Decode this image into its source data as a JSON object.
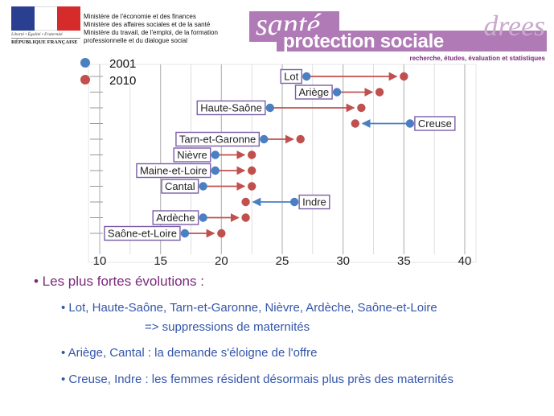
{
  "header": {
    "gov_motto": "Liberté • Égalité • Fraternité",
    "gov_republic": "RÉPUBLIQUE FRANÇAISE",
    "ministries": [
      "Ministère de l'économie et des finances",
      "Ministère des affaires sociales et de la santé",
      "Ministère du travail, de l'emploi, de la formation",
      "professionnelle et du dialogue social"
    ],
    "brand_sante": "santé",
    "brand_protection": "protection sociale",
    "brand_drees": "drees",
    "brand_tagline": "recherche, études, évaluation et statistiques",
    "colors": {
      "brand_purple": "#b07ab6",
      "title_purple": "#7b2a7b",
      "bullet_blue": "#3355aa"
    }
  },
  "chart_data": {
    "type": "scatter",
    "subtype": "dumbbell",
    "title": "",
    "xlabel": "",
    "ylabel": "",
    "xlim": [
      10,
      40
    ],
    "xticks": [
      10,
      15,
      20,
      25,
      30,
      35,
      40
    ],
    "grid": "vertical",
    "legend_position": "top-left",
    "series": [
      {
        "name": "2001",
        "color": "#4a7fc1"
      },
      {
        "name": "2010",
        "color": "#c0504d"
      }
    ],
    "rows": [
      {
        "label": "Lot",
        "v2001": 27,
        "v2010": 35
      },
      {
        "label": "Ariège",
        "v2001": 29.5,
        "v2010": 33
      },
      {
        "label": "Haute-Saône",
        "v2001": 24,
        "v2010": 31.5
      },
      {
        "label": "Creuse",
        "v2001": 35.5,
        "v2010": 31
      },
      {
        "label": "Tarn-et-Garonne",
        "v2001": 23.5,
        "v2010": 26.5
      },
      {
        "label": "Nièvre",
        "v2001": 19.5,
        "v2010": 22.5
      },
      {
        "label": "Maine-et-Loire",
        "v2001": 19.5,
        "v2010": 22.5
      },
      {
        "label": "Cantal",
        "v2001": 18.5,
        "v2010": 22.5
      },
      {
        "label": "Indre",
        "v2001": 26,
        "v2010": 22
      },
      {
        "label": "Ardèche",
        "v2001": 18.5,
        "v2010": 22
      },
      {
        "label": "Saône-et-Loire",
        "v2001": 17,
        "v2010": 20
      }
    ]
  },
  "bullets": {
    "heading": "• Les plus fortes évolutions :",
    "b1_line1": "• Lot, Haute-Saône, Tarn-et-Garonne, Nièvre, Ardèche, Saône-et-Loire",
    "b1_line2": "=> suppressions de maternités",
    "b2": "• Ariège, Cantal : la demande s'éloigne de l'offre",
    "b3": "• Creuse, Indre : les femmes résident désormais plus près des maternités"
  }
}
